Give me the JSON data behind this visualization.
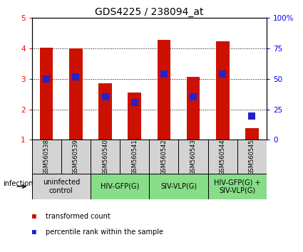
{
  "title": "GDS4225 / 238094_at",
  "samples": [
    "GSM560538",
    "GSM560539",
    "GSM560540",
    "GSM560541",
    "GSM560542",
    "GSM560543",
    "GSM560544",
    "GSM560545"
  ],
  "transformed_count": [
    4.02,
    3.99,
    2.85,
    2.55,
    4.28,
    3.07,
    4.22,
    1.38
  ],
  "percentile_rank": [
    3.0,
    3.05,
    2.4,
    2.22,
    3.15,
    2.42,
    3.15,
    1.78
  ],
  "ylim_left": [
    1,
    5
  ],
  "ylim_right": [
    0,
    100
  ],
  "yticks_left": [
    1,
    2,
    3,
    4,
    5
  ],
  "yticks_right": [
    0,
    25,
    50,
    75,
    100
  ],
  "ytick_right_labels": [
    "0",
    "25",
    "50",
    "75",
    "100%"
  ],
  "bar_color": "#cc1100",
  "dot_color": "#2222cc",
  "bar_width": 0.45,
  "groups": [
    {
      "label": "uninfected\ncontrol",
      "start": 0,
      "end": 2,
      "color": "#d3d3d3"
    },
    {
      "label": "HIV-GFP(G)",
      "start": 2,
      "end": 4,
      "color": "#88dd88"
    },
    {
      "label": "SIV-VLP(G)",
      "start": 4,
      "end": 6,
      "color": "#88dd88"
    },
    {
      "label": "HIV-GFP(G) +\nSIV-VLP(G)",
      "start": 6,
      "end": 8,
      "color": "#88dd88"
    }
  ],
  "legend_red_label": "transformed count",
  "legend_blue_label": "percentile rank within the sample",
  "infection_label": "infection",
  "background_color": "#ffffff",
  "title_fontsize": 10,
  "tick_fontsize": 7.5,
  "sample_fontsize": 6,
  "group_fontsize": 7,
  "legend_fontsize": 7
}
